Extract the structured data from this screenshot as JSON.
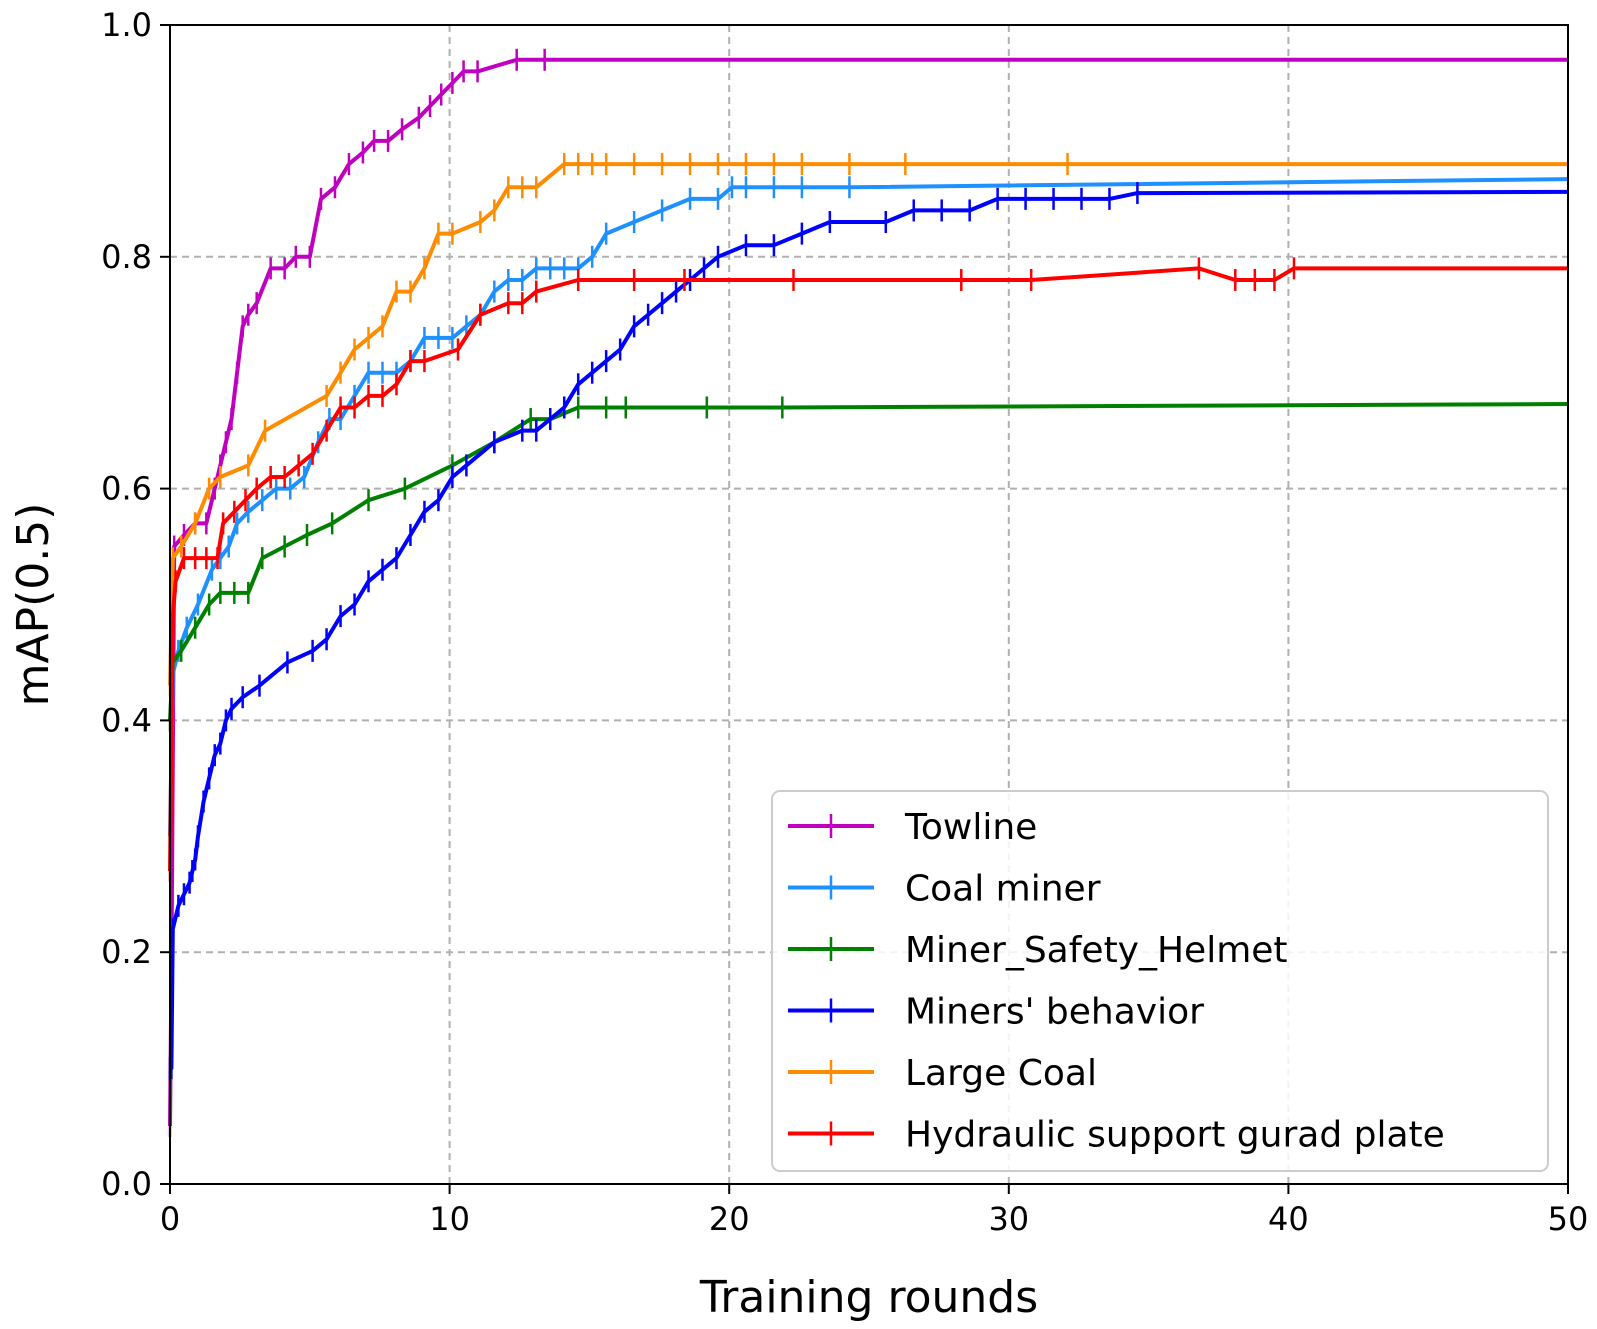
{
  "chart_data": {
    "type": "line",
    "title": "",
    "xlabel": "Training rounds",
    "ylabel": "mAP(0.5)",
    "xlim": [
      0,
      50
    ],
    "ylim": [
      0,
      1.0
    ],
    "xticks": [
      0,
      10,
      20,
      30,
      40,
      50
    ],
    "yticks": [
      0.0,
      0.2,
      0.4,
      0.6,
      0.8,
      1.0
    ],
    "xtick_labels": [
      "0",
      "10",
      "20",
      "30",
      "40",
      "50"
    ],
    "ytick_labels": [
      "0.0",
      "0.2",
      "0.4",
      "0.6",
      "0.8",
      "1.0"
    ],
    "grid": true,
    "legend_position": "lower-right",
    "marker": "vertical tick",
    "series": [
      {
        "name": "Towline",
        "color": "#bf00bf",
        "x": [
          0,
          0.05,
          0.15,
          0.5,
          0.9,
          1.3,
          1.6,
          1.8,
          2.0,
          2.2,
          2.4,
          2.6,
          2.8,
          3.1,
          3.6,
          4.1,
          4.5,
          5.0,
          5.4,
          5.9,
          6.4,
          6.9,
          7.3,
          7.8,
          8.3,
          8.9,
          9.3,
          9.7,
          10.1,
          10.5,
          11.0,
          12.4,
          13.4,
          50
        ],
        "y": [
          0.05,
          0.18,
          0.55,
          0.56,
          0.57,
          0.57,
          0.6,
          0.62,
          0.64,
          0.66,
          0.7,
          0.74,
          0.75,
          0.76,
          0.79,
          0.79,
          0.8,
          0.8,
          0.85,
          0.86,
          0.88,
          0.89,
          0.9,
          0.9,
          0.91,
          0.92,
          0.93,
          0.94,
          0.95,
          0.96,
          0.96,
          0.97,
          0.97,
          0.97
        ]
      },
      {
        "name": "Coal miner",
        "color": "#1e90ff",
        "x": [
          0,
          0.1,
          0.3,
          0.6,
          1.0,
          1.5,
          1.8,
          2.1,
          2.4,
          2.8,
          3.3,
          3.8,
          4.3,
          4.8,
          5.3,
          5.7,
          6.1,
          6.6,
          7.1,
          7.6,
          8.1,
          8.6,
          9.1,
          9.6,
          10.1,
          10.6,
          11.1,
          11.6,
          12.1,
          12.6,
          13.1,
          13.6,
          14.1,
          14.6,
          15.1,
          15.6,
          16.6,
          17.6,
          18.6,
          19.6,
          20.1,
          20.6,
          21.6,
          22.6,
          24.3,
          50
        ],
        "y": [
          0.3,
          0.44,
          0.46,
          0.48,
          0.5,
          0.53,
          0.54,
          0.55,
          0.57,
          0.58,
          0.59,
          0.6,
          0.6,
          0.61,
          0.64,
          0.66,
          0.66,
          0.68,
          0.7,
          0.7,
          0.7,
          0.71,
          0.73,
          0.73,
          0.73,
          0.74,
          0.75,
          0.77,
          0.78,
          0.78,
          0.79,
          0.79,
          0.79,
          0.79,
          0.8,
          0.82,
          0.83,
          0.84,
          0.85,
          0.85,
          0.86,
          0.86,
          0.86,
          0.86,
          0.86,
          0.867
        ]
      },
      {
        "name": "Miner_Safety_Helmet",
        "color": "#008000",
        "x": [
          0,
          0.1,
          0.4,
          0.9,
          1.4,
          1.8,
          2.3,
          2.8,
          3.3,
          4.1,
          4.9,
          5.8,
          7.1,
          8.4,
          10.1,
          11.6,
          12.9,
          13.6,
          14.6,
          15.6,
          16.3,
          19.2,
          21.9,
          50
        ],
        "y": [
          0.4,
          0.45,
          0.46,
          0.48,
          0.5,
          0.51,
          0.51,
          0.51,
          0.54,
          0.55,
          0.56,
          0.57,
          0.59,
          0.6,
          0.62,
          0.64,
          0.66,
          0.66,
          0.67,
          0.67,
          0.67,
          0.67,
          0.67,
          0.673
        ]
      },
      {
        "name": "Miners' behavior",
        "color": "#0000ff",
        "x": [
          0,
          0.05,
          0.1,
          0.3,
          0.5,
          0.7,
          0.8,
          0.9,
          1.0,
          1.2,
          1.4,
          1.6,
          1.8,
          2.0,
          2.2,
          2.6,
          3.2,
          4.2,
          5.1,
          5.6,
          6.1,
          6.6,
          7.1,
          7.6,
          8.1,
          8.6,
          9.1,
          9.6,
          10.1,
          10.6,
          11.6,
          12.6,
          13.1,
          13.6,
          14.1,
          14.6,
          15.1,
          15.6,
          16.1,
          16.6,
          17.1,
          17.6,
          18.1,
          18.6,
          19.1,
          19.6,
          20.6,
          21.6,
          22.6,
          23.6,
          25.6,
          26.6,
          27.6,
          28.6,
          29.6,
          30.6,
          31.6,
          32.6,
          33.6,
          34.6,
          50
        ],
        "y": [
          0.1,
          0.1,
          0.22,
          0.24,
          0.25,
          0.26,
          0.27,
          0.28,
          0.3,
          0.33,
          0.35,
          0.37,
          0.38,
          0.4,
          0.41,
          0.42,
          0.43,
          0.45,
          0.46,
          0.47,
          0.49,
          0.5,
          0.52,
          0.53,
          0.54,
          0.56,
          0.58,
          0.59,
          0.61,
          0.62,
          0.64,
          0.65,
          0.65,
          0.66,
          0.67,
          0.69,
          0.7,
          0.71,
          0.72,
          0.74,
          0.75,
          0.76,
          0.77,
          0.78,
          0.79,
          0.8,
          0.81,
          0.81,
          0.82,
          0.83,
          0.83,
          0.84,
          0.84,
          0.84,
          0.85,
          0.85,
          0.85,
          0.85,
          0.85,
          0.855,
          0.856
        ]
      },
      {
        "name": "Large Coal",
        "color": "#ff8c00",
        "x": [
          0,
          0.1,
          0.4,
          0.9,
          1.4,
          1.8,
          2.8,
          3.4,
          5.6,
          6.1,
          6.6,
          7.1,
          7.6,
          8.1,
          8.6,
          9.1,
          9.6,
          10.1,
          11.1,
          11.6,
          12.1,
          12.6,
          13.1,
          14.1,
          14.6,
          15.1,
          15.6,
          16.6,
          17.6,
          18.6,
          19.6,
          20.6,
          21.6,
          22.6,
          24.3,
          26.3,
          32.1,
          50
        ],
        "y": [
          0.43,
          0.54,
          0.55,
          0.57,
          0.6,
          0.61,
          0.62,
          0.65,
          0.68,
          0.7,
          0.72,
          0.73,
          0.74,
          0.77,
          0.77,
          0.79,
          0.82,
          0.82,
          0.83,
          0.84,
          0.86,
          0.86,
          0.86,
          0.88,
          0.88,
          0.88,
          0.88,
          0.88,
          0.88,
          0.88,
          0.88,
          0.88,
          0.88,
          0.88,
          0.88,
          0.88,
          0.88,
          0.88
        ]
      },
      {
        "name": "Hydraulic support gurad plate",
        "color": "#ff0000",
        "x": [
          0,
          0.1,
          0.2,
          0.5,
          0.9,
          1.3,
          1.7,
          1.9,
          2.3,
          2.7,
          3.1,
          3.6,
          4.1,
          4.6,
          5.1,
          5.6,
          6.1,
          6.6,
          7.1,
          7.6,
          8.1,
          8.6,
          9.1,
          10.3,
          11.1,
          12.1,
          12.6,
          13.1,
          14.6,
          16.6,
          18.4,
          22.3,
          28.3,
          30.8,
          36.8,
          38.1,
          38.8,
          39.5,
          40.2,
          50
        ],
        "y": [
          0.27,
          0.49,
          0.52,
          0.54,
          0.54,
          0.54,
          0.54,
          0.57,
          0.58,
          0.59,
          0.6,
          0.61,
          0.61,
          0.62,
          0.63,
          0.65,
          0.67,
          0.67,
          0.68,
          0.68,
          0.69,
          0.71,
          0.71,
          0.72,
          0.75,
          0.76,
          0.76,
          0.77,
          0.78,
          0.78,
          0.78,
          0.78,
          0.78,
          0.78,
          0.79,
          0.78,
          0.78,
          0.78,
          0.79,
          0.79
        ]
      }
    ]
  }
}
